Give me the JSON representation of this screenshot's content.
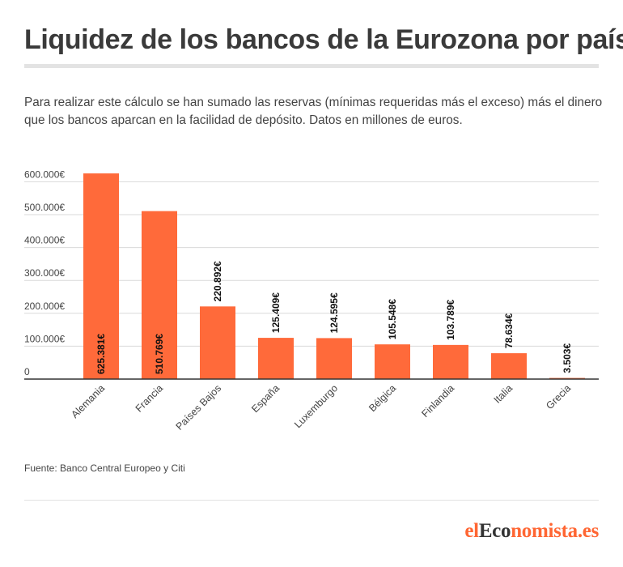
{
  "title": "Liquidez de los bancos de la Eurozona por país",
  "subtitle": "Para realizar este cálculo se han sumado las reservas (mínimas requeridas más el exceso) más el dinero que los bancos aparcan en la facilidad de depósito. Datos en millones de euros.",
  "source": "Fuente: Banco Central Europeo y Citi",
  "brand": {
    "prefix": "el",
    "middle": "Eco",
    "suffix": "nomista.es"
  },
  "colors": {
    "bar": "#ff6a3a",
    "brand": "#ff6633",
    "grid": "#d9d9d9",
    "axis": "#333333"
  },
  "chart_data": {
    "type": "bar",
    "categories": [
      "Alemania",
      "Francia",
      "Países Bajos",
      "España",
      "Luxemburgo",
      "Bélgica",
      "Finlandia",
      "Italia",
      "Grecia"
    ],
    "values": [
      625381,
      510769,
      220892,
      125409,
      124595,
      105548,
      103789,
      78634,
      3503
    ],
    "value_labels": [
      "625.381€",
      "510.769€",
      "220.892€",
      "125.409€",
      "124.595€",
      "105.548€",
      "103.789€",
      "78.634€",
      "3.503€"
    ],
    "yticks": [
      0,
      100000,
      200000,
      300000,
      400000,
      500000,
      600000
    ],
    "ytick_labels": [
      "0",
      "100.000€",
      "200.000€",
      "300.000€",
      "400.000€",
      "500.000€",
      "600.000€"
    ],
    "ylim": [
      0,
      625381
    ],
    "grid": true,
    "legend": "none"
  }
}
